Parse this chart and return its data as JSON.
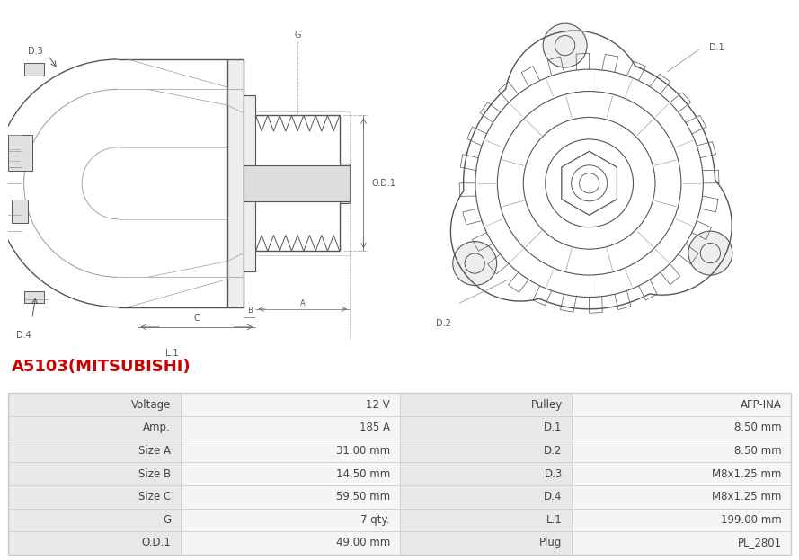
{
  "title": "A5103(MITSUBISHI)",
  "title_color": "#cc0000",
  "bg_color": "#ffffff",
  "table_rows": [
    [
      "Voltage",
      "12 V",
      "Pulley",
      "AFP-INA"
    ],
    [
      "Amp.",
      "185 A",
      "D.1",
      "8.50 mm"
    ],
    [
      "Size A",
      "31.00 mm",
      "D.2",
      "8.50 mm"
    ],
    [
      "Size B",
      "14.50 mm",
      "D.3",
      "M8x1.25 mm"
    ],
    [
      "Size C",
      "59.50 mm",
      "D.4",
      "M8x1.25 mm"
    ],
    [
      "G",
      "7 qty.",
      "L.1",
      "199.00 mm"
    ],
    [
      "O.D.1",
      "49.00 mm",
      "Plug",
      "PL_2801"
    ]
  ],
  "line_color": "#555555",
  "dim_color": "#666666",
  "gray_color": "#999999",
  "label_bg": "#e8e8e8",
  "value_bg": "#f5f5f5",
  "border_color": "#cccccc",
  "text_color": "#444444",
  "font_size": 8.5,
  "title_fontsize": 13
}
